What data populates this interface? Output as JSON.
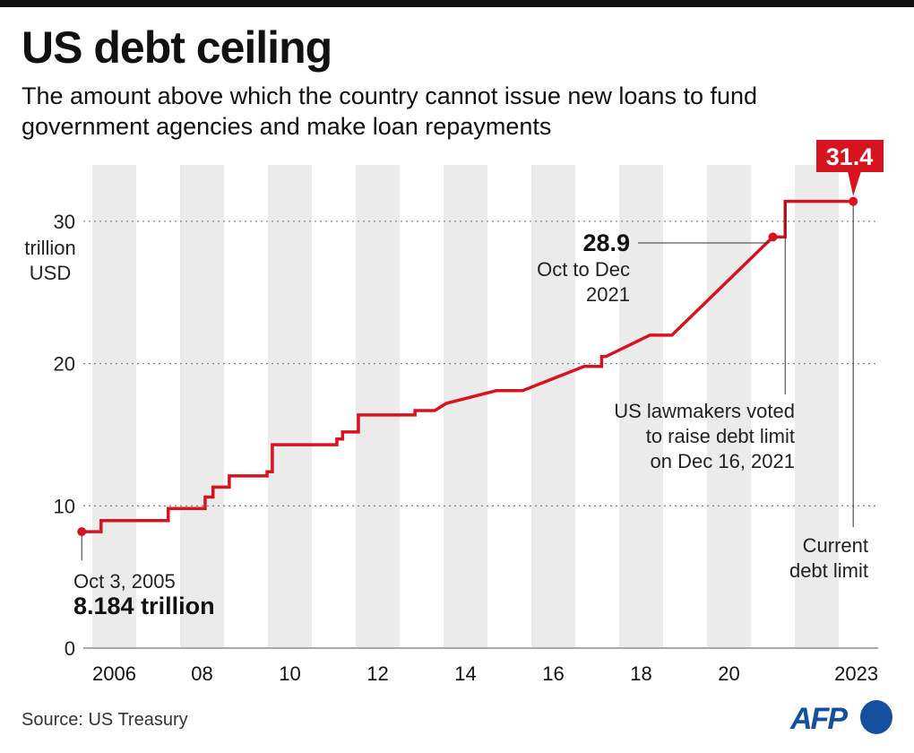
{
  "header": {
    "title": "US debt ceiling",
    "subtitle": "The amount above which the country cannot issue new loans to fund government agencies and make loan repayments"
  },
  "footer": {
    "source": "Source: US Treasury",
    "logo": "AFP"
  },
  "colors": {
    "line": "#d7131f",
    "band": "#ebebeb",
    "logo": "#1550a0"
  },
  "chart_data": {
    "type": "line",
    "title": "US debt ceiling",
    "ylabel": "trillion USD",
    "ylabel_lines": [
      "trillion",
      "USD"
    ],
    "ylim": [
      0,
      33.5
    ],
    "xlim": [
      2005.55,
      2023.7
    ],
    "yticks": [
      0,
      10,
      20,
      30
    ],
    "ytick_labels": [
      "0",
      "10",
      "20",
      "30"
    ],
    "xticks": [
      2006.5,
      2008.5,
      2010.5,
      2012.5,
      2014.5,
      2016.5,
      2018.5,
      2020.5,
      2023.4
    ],
    "xtick_labels": [
      "2006",
      "08",
      "10",
      "12",
      "14",
      "16",
      "18",
      "20",
      "2023"
    ],
    "grid": "horizontal dotted",
    "shaded_years": [
      2006,
      2008,
      2010,
      2012,
      2014,
      2016,
      2018,
      2020,
      2022
    ],
    "series": [
      {
        "step": true,
        "points": [
          [
            2005.76,
            8.184
          ],
          [
            2006.2,
            8.965
          ],
          [
            2007.73,
            9.815
          ],
          [
            2008.57,
            10.615
          ],
          [
            2008.75,
            11.315
          ],
          [
            2009.12,
            12.104
          ],
          [
            2009.98,
            12.394
          ],
          [
            2010.1,
            14.294
          ],
          [
            2011.57,
            14.694
          ],
          [
            2011.7,
            15.194
          ],
          [
            2012.06,
            16.394
          ],
          [
            2013.35,
            16.7
          ],
          [
            2013.8,
            16.7,
            "slope"
          ],
          [
            2014.06,
            17.2,
            "slope"
          ],
          [
            2015.2,
            18.1,
            "slope"
          ],
          [
            2015.8,
            18.1,
            "slope"
          ],
          [
            2017.2,
            19.8,
            "slope"
          ],
          [
            2017.5,
            19.8,
            "slope"
          ],
          [
            2017.6,
            20.5
          ],
          [
            2017.7,
            20.5,
            "slope"
          ],
          [
            2018.7,
            22.0,
            "slope"
          ],
          [
            2019.2,
            22.0,
            "slope"
          ],
          [
            2021.5,
            28.9,
            "slope"
          ],
          [
            2021.7,
            28.9,
            "slope"
          ],
          [
            2021.78,
            31.4
          ],
          [
            2023.33,
            31.4,
            "slope"
          ]
        ]
      }
    ],
    "annotations": [
      {
        "value_label": "8.184 trillion",
        "date_label": "Oct 3, 2005",
        "x": 2005.76,
        "y": 8.184
      },
      {
        "value_label": "28.9",
        "date_label": [
          "Oct to Dec",
          "2021"
        ],
        "x": 2021.5,
        "y": 28.9
      },
      {
        "label": [
          "US lawmakers voted",
          "to raise debt limit",
          "on Dec 16, 2021"
        ],
        "x": 2021.78,
        "y": 31.4
      },
      {
        "label": [
          "Current",
          "debt limit"
        ],
        "x": 2023.33,
        "y": 31.4,
        "value_label": "31.4"
      }
    ]
  }
}
